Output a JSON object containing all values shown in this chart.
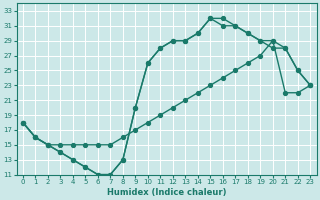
{
  "xlabel": "Humidex (Indice chaleur)",
  "bg_color": "#cce8e8",
  "grid_color": "#b8d8d8",
  "line_color": "#1a7a6a",
  "xlim_min": -0.5,
  "xlim_max": 23.5,
  "ylim_min": 11,
  "ylim_max": 34,
  "xticks": [
    0,
    1,
    2,
    3,
    4,
    5,
    6,
    7,
    8,
    9,
    10,
    11,
    12,
    13,
    14,
    15,
    16,
    17,
    18,
    19,
    20,
    21,
    22,
    23
  ],
  "yticks": [
    11,
    13,
    15,
    17,
    19,
    21,
    23,
    25,
    27,
    29,
    31,
    33
  ],
  "curve1_x": [
    0,
    1,
    2,
    3,
    4,
    5,
    6,
    7,
    8,
    9,
    10,
    11,
    12,
    13,
    14,
    15,
    16,
    17,
    18,
    19,
    20,
    21,
    22,
    23
  ],
  "curve1_y": [
    18,
    16,
    15,
    14,
    13,
    12,
    11,
    11,
    13,
    20,
    26,
    28,
    29,
    29,
    30,
    32,
    32,
    31,
    30,
    29,
    28,
    28,
    25,
    23
  ],
  "curve2_x": [
    0,
    1,
    2,
    3,
    4,
    5,
    6,
    7,
    8,
    9,
    10,
    11,
    12,
    13,
    14,
    15,
    16,
    17,
    18,
    19,
    20,
    21,
    22,
    23
  ],
  "curve2_y": [
    18,
    16,
    15,
    15,
    15,
    15,
    15,
    15,
    16,
    17,
    18,
    19,
    20,
    21,
    22,
    23,
    24,
    25,
    26,
    27,
    29,
    22,
    22,
    23
  ],
  "curve3_x": [
    0,
    1,
    2,
    3,
    4,
    5,
    6,
    7,
    8,
    9,
    10,
    11,
    12,
    13,
    14,
    15,
    16,
    17,
    18,
    19,
    20,
    21,
    22,
    23
  ],
  "curve3_y": [
    18,
    16,
    15,
    14,
    13,
    12,
    11,
    11,
    13,
    20,
    26,
    28,
    29,
    29,
    30,
    32,
    31,
    31,
    30,
    29,
    29,
    28,
    25,
    23
  ]
}
